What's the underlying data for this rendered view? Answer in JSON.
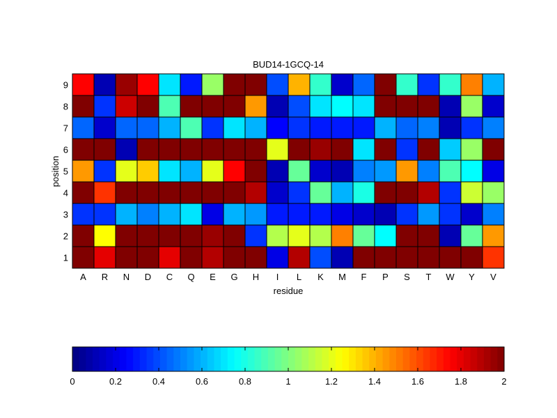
{
  "chart_data": {
    "type": "heatmap",
    "title": "BUD14-1GCQ-14",
    "xlabel": "residue",
    "ylabel": "position",
    "x_categories": [
      "A",
      "R",
      "N",
      "D",
      "C",
      "Q",
      "E",
      "G",
      "H",
      "I",
      "L",
      "K",
      "M",
      "F",
      "P",
      "S",
      "T",
      "W",
      "Y",
      "V"
    ],
    "y_categories": [
      "1",
      "2",
      "3",
      "4",
      "5",
      "6",
      "7",
      "8",
      "9"
    ],
    "colormap": "jet",
    "clim": [
      0,
      2
    ],
    "colorbar": {
      "orientation": "horizontal",
      "ticks": [
        0,
        0.2,
        0.4,
        0.6,
        0.8,
        1,
        1.2,
        1.4,
        1.6,
        1.8,
        2
      ],
      "tick_labels": [
        "0",
        "0.2",
        "0.4",
        "0.6",
        "0.8",
        "1",
        "1.2",
        "1.4",
        "1.6",
        "1.8",
        "2"
      ]
    },
    "values": [
      [
        2.0,
        1.8,
        2.0,
        2.0,
        1.8,
        2.0,
        1.9,
        2.0,
        2.0,
        0.2,
        1.9,
        0.4,
        0.1,
        2.0,
        2.0,
        2.0,
        2.0,
        2.0,
        2.0,
        1.65
      ],
      [
        2.0,
        1.25,
        2.0,
        2.0,
        2.0,
        2.0,
        1.95,
        2.0,
        0.35,
        1.1,
        1.2,
        1.1,
        1.5,
        0.95,
        0.75,
        2.0,
        2.0,
        0.1,
        0.95,
        1.45
      ],
      [
        0.35,
        0.35,
        0.6,
        0.5,
        0.6,
        0.7,
        0.2,
        0.6,
        0.55,
        0.3,
        0.3,
        0.3,
        0.2,
        0.15,
        0.1,
        0.35,
        0.55,
        0.35,
        0.15,
        0.5
      ],
      [
        2.0,
        1.65,
        2.0,
        2.0,
        2.0,
        2.0,
        2.0,
        2.0,
        1.9,
        0.15,
        0.35,
        0.95,
        0.6,
        0.8,
        2.0,
        2.0,
        1.9,
        0.35,
        1.15,
        1.05
      ],
      [
        1.45,
        0.35,
        1.2,
        1.35,
        0.7,
        0.6,
        1.2,
        1.75,
        2.0,
        0.1,
        0.95,
        0.15,
        0.1,
        0.5,
        0.55,
        1.45,
        0.5,
        0.9,
        0.75,
        0.2
      ],
      [
        2.0,
        2.0,
        0.1,
        2.0,
        2.0,
        2.0,
        2.0,
        2.0,
        2.0,
        1.2,
        2.0,
        1.95,
        2.0,
        0.7,
        2.0,
        0.35,
        2.0,
        0.65,
        1.05,
        2.0
      ],
      [
        0.45,
        0.15,
        0.45,
        0.45,
        0.6,
        0.9,
        0.35,
        0.7,
        0.6,
        0.25,
        0.35,
        0.3,
        0.3,
        0.3,
        0.6,
        0.45,
        0.5,
        0.1,
        0.35,
        0.5
      ],
      [
        2.0,
        0.35,
        1.85,
        2.0,
        0.9,
        2.0,
        2.0,
        2.0,
        1.45,
        0.1,
        0.4,
        0.7,
        0.75,
        0.7,
        2.0,
        2.0,
        2.0,
        0.1,
        1.05,
        0.15
      ],
      [
        1.75,
        0.1,
        1.95,
        1.75,
        0.7,
        0.3,
        1.05,
        2.0,
        2.0,
        0.4,
        1.4,
        0.85,
        0.15,
        0.45,
        2.0,
        0.85,
        0.35,
        0.85,
        1.5,
        0.6
      ]
    ]
  }
}
